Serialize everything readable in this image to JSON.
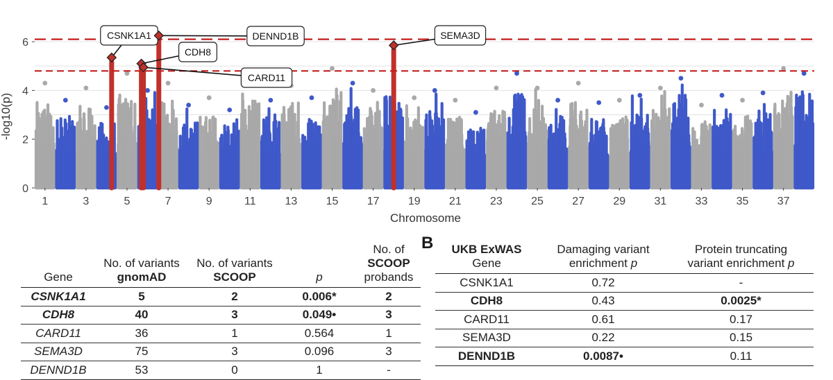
{
  "chart_data": {
    "type": "scatter",
    "ylabel": "-log10(p)",
    "xlabel": "Chromosome",
    "ylim": [
      0,
      6.8
    ],
    "yticks": [
      "0",
      "2",
      "4",
      "6"
    ],
    "xticks": [
      "1",
      "3",
      "5",
      "7",
      "9",
      "11",
      "13",
      "15",
      "17",
      "19",
      "21",
      "23",
      "25",
      "27",
      "29",
      "31",
      "33",
      "35",
      "37"
    ],
    "chromosomes": [
      {
        "chrom": 1,
        "max": 4.3
      },
      {
        "chrom": 2,
        "max": 3.6
      },
      {
        "chrom": 3,
        "max": 4.1
      },
      {
        "chrom": 4,
        "max": 3.3
      },
      {
        "chrom": 5,
        "max": 4.7
      },
      {
        "chrom": 6,
        "max": 4.0
      },
      {
        "chrom": 7,
        "max": 4.3
      },
      {
        "chrom": 8,
        "max": 3.4
      },
      {
        "chrom": 9,
        "max": 3.7
      },
      {
        "chrom": 10,
        "max": 3.2
      },
      {
        "chrom": 11,
        "max": 4.4
      },
      {
        "chrom": 12,
        "max": 3.6
      },
      {
        "chrom": 13,
        "max": 4.2
      },
      {
        "chrom": 14,
        "max": 3.7
      },
      {
        "chrom": 15,
        "max": 4.9
      },
      {
        "chrom": 16,
        "max": 4.3
      },
      {
        "chrom": 17,
        "max": 4.0
      },
      {
        "chrom": 18,
        "max": 4.7
      },
      {
        "chrom": 19,
        "max": 3.7
      },
      {
        "chrom": 20,
        "max": 4.0
      },
      {
        "chrom": 21,
        "max": 3.6
      },
      {
        "chrom": 22,
        "max": 3.1
      },
      {
        "chrom": 23,
        "max": 4.1
      },
      {
        "chrom": 24,
        "max": 4.7
      },
      {
        "chrom": 25,
        "max": 4.1
      },
      {
        "chrom": 26,
        "max": 3.6
      },
      {
        "chrom": 27,
        "max": 4.3
      },
      {
        "chrom": 28,
        "max": 3.5
      },
      {
        "chrom": 29,
        "max": 3.6
      },
      {
        "chrom": 30,
        "max": 3.8
      },
      {
        "chrom": 31,
        "max": 4.1
      },
      {
        "chrom": 32,
        "max": 4.5
      },
      {
        "chrom": 33,
        "max": 3.4
      },
      {
        "chrom": 34,
        "max": 3.8
      },
      {
        "chrom": 35,
        "max": 3.6
      },
      {
        "chrom": 36,
        "max": 3.9
      },
      {
        "chrom": 37,
        "max": 4.9
      },
      {
        "chrom": 38,
        "max": 4.7
      }
    ],
    "highlighted": [
      {
        "gene": "CSNK1A1",
        "x": 4.25,
        "y": 5.35
      },
      {
        "gene": "CDH8",
        "x": 5.7,
        "y": 5.1
      },
      {
        "gene": "CARD11",
        "x": 5.8,
        "y": 4.95
      },
      {
        "gene": "DENND1B",
        "x": 6.55,
        "y": 6.25
      },
      {
        "gene": "SEMA3D",
        "x": 18.0,
        "y": 5.85
      }
    ],
    "thresholds": [
      6.1,
      4.8
    ],
    "colors": {
      "gray": "#a9a9a9",
      "blue": "#3f59c9",
      "red": "#c0312b",
      "threshold": "#c41e1e"
    }
  },
  "table_a": {
    "headers": {
      "gene": "Gene",
      "variants_gnomad_1": "No. of variants",
      "variants_gnomad_2": "gnomAD",
      "variants_scoop_1": "No. of variants",
      "variants_scoop_2": "SCOOP",
      "p": "p",
      "probands_1": "No. of",
      "probands_2": "SCOOP",
      "probands_3": "probands"
    },
    "rows": [
      {
        "gene": "CSNK1A1",
        "gnomad": "5",
        "scoop": "2",
        "p": "0.006*",
        "probands": "2"
      },
      {
        "gene": "CDH8",
        "gnomad": "40",
        "scoop": "3",
        "p": "0.049•",
        "probands": "3"
      },
      {
        "gene": "CARD11",
        "gnomad": "36",
        "scoop": "1",
        "p": "0.564",
        "probands": "1"
      },
      {
        "gene": "SEMA3D",
        "gnomad": "75",
        "scoop": "3",
        "p": "0.096",
        "probands": "3"
      },
      {
        "gene": "DENND1B",
        "gnomad": "53",
        "scoop": "0",
        "p": "1",
        "probands": "-"
      }
    ]
  },
  "panel_b_label": "B",
  "table_b": {
    "headers": {
      "gene_1": "UKB ExWAS",
      "gene_2": "Gene",
      "damaging_1": "Damaging variant",
      "damaging_2": "enrichment",
      "damaging_p": "p",
      "truncating_1": "Protein truncating",
      "truncating_2": "variant enrichment",
      "truncating_p": "p"
    },
    "rows": [
      {
        "gene": "CSNK1A1",
        "damaging": "0.72",
        "truncating": "-"
      },
      {
        "gene": "CDH8",
        "damaging": "0.43",
        "truncating": "0.0025*"
      },
      {
        "gene": "CARD11",
        "damaging": "0.61",
        "truncating": "0.17"
      },
      {
        "gene": "SEMA3D",
        "damaging": "0.22",
        "truncating": "0.15"
      },
      {
        "gene": "DENND1B",
        "damaging": "0.0087•",
        "truncating": "0.11"
      }
    ]
  }
}
